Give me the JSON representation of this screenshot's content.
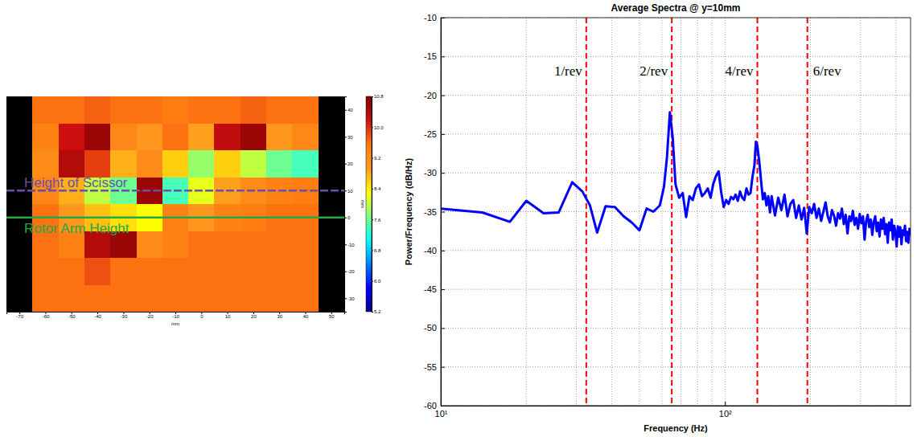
{
  "chart_data": [
    {
      "type": "heatmap",
      "x": [
        -70,
        -60,
        -50,
        -40,
        -30,
        -20,
        -10,
        0,
        10,
        20,
        30,
        40,
        50
      ],
      "y": [
        40,
        30,
        20,
        10,
        0,
        -10,
        -20,
        -30
      ],
      "z": [
        [
          null,
          9.6,
          9.6,
          9.7,
          9.6,
          9.6,
          9.5,
          9.6,
          9.6,
          9.7,
          9.6,
          9.6,
          null
        ],
        [
          null,
          9.4,
          10.2,
          10.6,
          9.3,
          9.0,
          9.6,
          8.9,
          10.3,
          10.6,
          9.0,
          9.3,
          null
        ],
        [
          null,
          9.2,
          10.4,
          9.9,
          8.8,
          9.2,
          8.6,
          7.8,
          8.6,
          8.0,
          7.6,
          7.4,
          null
        ],
        [
          null,
          9.3,
          8.8,
          8.0,
          7.6,
          10.6,
          7.4,
          8.2,
          8.9,
          9.2,
          9.4,
          9.5,
          null
        ],
        [
          null,
          9.6,
          9.0,
          8.7,
          8.5,
          8.3,
          9.4,
          9.0,
          9.4,
          9.5,
          9.6,
          9.6,
          null
        ],
        [
          null,
          9.6,
          9.4,
          10.4,
          10.6,
          9.2,
          9.4,
          9.6,
          9.6,
          9.6,
          9.6,
          9.6,
          null
        ],
        [
          null,
          9.6,
          9.6,
          9.8,
          9.6,
          9.6,
          9.6,
          9.6,
          9.6,
          9.6,
          9.6,
          9.6,
          null
        ],
        [
          null,
          9.6,
          9.6,
          9.6,
          9.6,
          9.6,
          9.6,
          9.6,
          9.6,
          9.6,
          9.6,
          9.6,
          null
        ]
      ],
      "xlim": [
        -75,
        55
      ],
      "ylim": [
        -35,
        45
      ],
      "xticks": [
        -70,
        -60,
        -50,
        -40,
        -30,
        -20,
        -10,
        0,
        10,
        20,
        30,
        40,
        50
      ],
      "yticks": [
        -30,
        -20,
        -10,
        0,
        10,
        20,
        30,
        40
      ],
      "x_label": "mm",
      "y_label": "mm",
      "colorbar": {
        "range": [
          5.2,
          10.8
        ],
        "ticks": [
          5.2,
          {
            "value": 6,
            "label": "6.0"
          },
          6.8,
          7.6,
          8.4,
          9.2,
          {
            "value": 10,
            "label": "10.0"
          },
          10.8
        ]
      },
      "lines": [
        {
          "name": "Height of Scissor",
          "y": 10,
          "color": "#6b4fa8",
          "line_style": "dashed"
        },
        {
          "name": "Rotor Arm Height",
          "y": 0,
          "color": "#22a845",
          "line_style": "solid"
        }
      ]
    },
    {
      "type": "line",
      "title": "Average Spectra @ y=10mm",
      "x_label": "Frequency (Hz)",
      "y_label": "Power/Frequency (dB/Hz)",
      "color": "#0000ff",
      "log": "x",
      "grid": true,
      "xlim": [
        10,
        450
      ],
      "ylim": [
        -60,
        -10
      ],
      "xticks": [
        {
          "value": 10,
          "label": "10¹"
        },
        {
          "value": 100,
          "label": "10²"
        }
      ],
      "xminor": [
        20,
        30,
        40,
        50,
        60,
        70,
        80,
        90,
        200,
        300,
        400
      ],
      "yticks": [
        -60,
        -55,
        -50,
        -45,
        -40,
        -35,
        -30,
        -25,
        -20,
        -15,
        -10
      ],
      "x": [
        10,
        14,
        17.5,
        20,
        23,
        26,
        29,
        31.5,
        33.5,
        35.5,
        38,
        41,
        44,
        47,
        50,
        53,
        56,
        59,
        61,
        62.5,
        64,
        65.5,
        67,
        69,
        71,
        73,
        75,
        77,
        79,
        81,
        83,
        85,
        87,
        89,
        91,
        93,
        95,
        97,
        99,
        101,
        103,
        105,
        107,
        109,
        111,
        113,
        115,
        117,
        119,
        121,
        123,
        125,
        127,
        128.5,
        130,
        132,
        134,
        136,
        138,
        140,
        142,
        144,
        146,
        150,
        154,
        158,
        162,
        166,
        170,
        174,
        178,
        182,
        186,
        190,
        194,
        198,
        202,
        206,
        210,
        214,
        218,
        222,
        226,
        230,
        234,
        238,
        242,
        246,
        250,
        254,
        258,
        262,
        266,
        270,
        274,
        278,
        282,
        286,
        290,
        294,
        298,
        302,
        306,
        310,
        314,
        318,
        322,
        326,
        330,
        334,
        338,
        342,
        346,
        350,
        354,
        358,
        362,
        366,
        370,
        374,
        378,
        382,
        386,
        390,
        394,
        398,
        402,
        406,
        410,
        414,
        418,
        422,
        426,
        430,
        434,
        438,
        442,
        446,
        450
      ],
      "values": [
        -34.6,
        -35.1,
        -36.3,
        -33.6,
        -35.2,
        -35.1,
        -31.2,
        -32.4,
        -34.2,
        -37.7,
        -34.3,
        -34.4,
        -35.6,
        -36.4,
        -37.4,
        -34.6,
        -35.0,
        -34.2,
        -31.8,
        -28.0,
        -22.2,
        -25.5,
        -31.5,
        -33.2,
        -32.6,
        -35.7,
        -33.0,
        -33.5,
        -32.0,
        -31.5,
        -33.0,
        -32.6,
        -32.0,
        -33.2,
        -31.4,
        -30.4,
        -29.8,
        -32.5,
        -34.4,
        -33.5,
        -34.0,
        -33.1,
        -33.4,
        -32.8,
        -33.6,
        -32.4,
        -33.2,
        -33.5,
        -32.0,
        -32.8,
        -32.6,
        -30.5,
        -29.0,
        -26.0,
        -26.5,
        -28.5,
        -31.0,
        -33.4,
        -32.6,
        -34.2,
        -33.0,
        -35.1,
        -33.0,
        -35.5,
        -33.2,
        -34.8,
        -32.8,
        -35.6,
        -34.0,
        -33.5,
        -35.8,
        -34.2,
        -36.0,
        -34.5,
        -37.8,
        -34.4,
        -35.2,
        -34.0,
        -35.8,
        -34.6,
        -36.2,
        -35.0,
        -33.8,
        -35.6,
        -36.4,
        -34.8,
        -35.5,
        -36.8,
        -35.2,
        -35.9,
        -34.6,
        -36.6,
        -35.4,
        -37.8,
        -35.6,
        -36.2,
        -34.9,
        -36.7,
        -35.8,
        -37.2,
        -35.3,
        -36.5,
        -35.6,
        -38.6,
        -36.2,
        -35.4,
        -37.0,
        -36.0,
        -38.0,
        -36.3,
        -35.6,
        -37.5,
        -36.4,
        -38.2,
        -36.0,
        -37.2,
        -35.8,
        -37.9,
        -36.6,
        -39.0,
        -36.4,
        -37.4,
        -36.0,
        -38.6,
        -36.8,
        -37.6,
        -39.5,
        -36.9,
        -38.2,
        -37.0,
        -39.2,
        -37.4,
        -38.0,
        -36.8,
        -38.8,
        -37.6,
        -39.0,
        -37.2,
        -38.0
      ],
      "annotations": [
        {
          "text": "1/rev",
          "x": 32.5,
          "y": -17,
          "color": "#ff0000",
          "line_style": "dashed"
        },
        {
          "text": "2/rev",
          "x": 65,
          "y": -17,
          "color": "#ff0000",
          "line_style": "dashed"
        },
        {
          "text": "4/rev",
          "x": 130,
          "y": -17,
          "color": "#ff0000",
          "line_style": "dashed"
        },
        {
          "text": "6/rev",
          "x": 195,
          "y": -17,
          "color": "#ff0000",
          "line_style": "dashed"
        }
      ]
    }
  ]
}
